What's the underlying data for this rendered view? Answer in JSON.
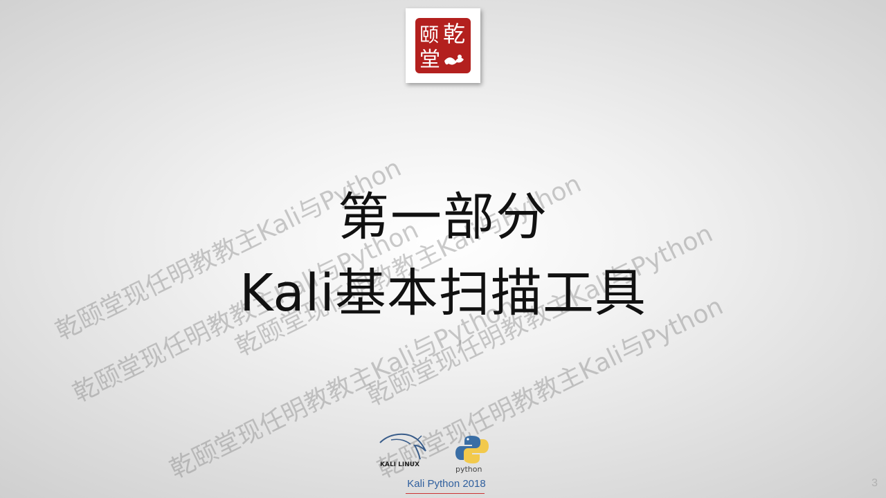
{
  "slide": {
    "title_line1": "第一部分",
    "title_line2": "Kali基本扫描工具",
    "page_number": "3"
  },
  "logo": {
    "seal_characters": "乾颐堂",
    "seal_color": "#b3201e"
  },
  "watermark": {
    "text": "乾颐堂现任明教教主Kali与Python"
  },
  "footer": {
    "kali_logo_text": "KALI LINUX",
    "python_logo_text": "python",
    "label": "Kali Python 2018",
    "label_color": "#2f5f9e",
    "rule_color": "#cc3333"
  }
}
